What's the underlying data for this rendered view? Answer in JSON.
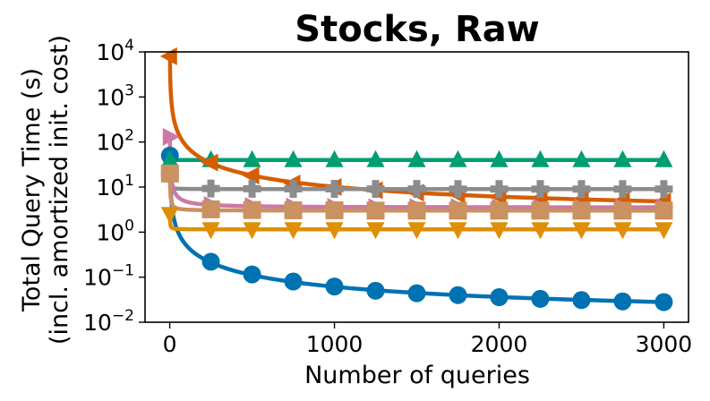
{
  "chart_data": {
    "type": "line",
    "title": "Stocks, Raw",
    "xlabel": "Number of queries",
    "ylabel": [
      "Total Query Time (s)",
      "(incl. amortized init. cost)"
    ],
    "xlim": [
      -150,
      3150
    ],
    "ylim": [
      0.01,
      10000
    ],
    "yscale": "log",
    "xticks": [
      0,
      1000,
      2000,
      3000
    ],
    "yticks": [
      {
        "value": 0.01,
        "base": "10",
        "exp": "−2"
      },
      {
        "value": 0.1,
        "base": "10",
        "exp": "−1"
      },
      {
        "value": 1,
        "base": "10",
        "exp": "0"
      },
      {
        "value": 10,
        "base": "10",
        "exp": "1"
      },
      {
        "value": 100,
        "base": "10",
        "exp": "2"
      },
      {
        "value": 1000,
        "base": "10",
        "exp": "3"
      },
      {
        "value": 10000,
        "base": "10",
        "exp": "4"
      }
    ],
    "grid": false,
    "x": [
      1,
      250,
      500,
      750,
      1000,
      1250,
      1500,
      1750,
      2000,
      2250,
      2500,
      2750,
      3000
    ],
    "series": [
      {
        "marker": "circle",
        "color": "#0072b2",
        "values": [
          50,
          0.22,
          0.115,
          0.08,
          0.062,
          0.05,
          0.044,
          0.04,
          0.036,
          0.033,
          0.031,
          0.029,
          0.028
        ]
      },
      {
        "marker": "triangle-up",
        "color": "#009e73",
        "values": [
          40,
          40,
          40,
          40,
          40,
          40,
          40,
          40,
          40,
          40,
          40,
          40,
          40
        ]
      },
      {
        "marker": "triangle-left",
        "color": "#d55e00",
        "values": [
          8000,
          35,
          18,
          12,
          10,
          8.5,
          7.5,
          6.8,
          6.2,
          5.7,
          5.3,
          5.0,
          4.8
        ]
      },
      {
        "marker": "plus",
        "color": "#8c8c8c",
        "values": [
          20,
          9.3,
          9.2,
          9.1,
          9.1,
          9.05,
          9.05,
          9.0,
          9.0,
          9.0,
          9.0,
          9.0,
          9.0
        ]
      },
      {
        "marker": "triangle-right",
        "color": "#cc79a7",
        "values": [
          130,
          4.0,
          3.8,
          3.7,
          3.65,
          3.6,
          3.6,
          3.6,
          3.55,
          3.55,
          3.55,
          3.55,
          3.55
        ]
      },
      {
        "marker": "square",
        "color": "#ca9161",
        "values": [
          20,
          3.2,
          3.1,
          3.05,
          3.05,
          3.0,
          3.0,
          3.0,
          3.0,
          3.0,
          3.0,
          3.0,
          3.0
        ]
      },
      {
        "marker": "triangle-down",
        "color": "#de8f05",
        "values": [
          2.5,
          1.15,
          1.15,
          1.15,
          1.15,
          1.15,
          1.15,
          1.15,
          1.15,
          1.15,
          1.15,
          1.15,
          1.15
        ]
      }
    ]
  }
}
